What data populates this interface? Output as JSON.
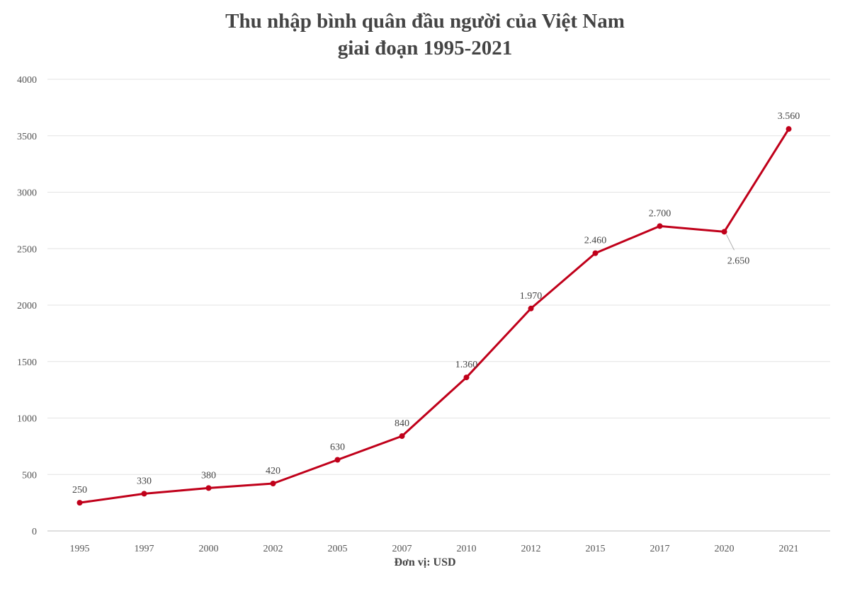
{
  "chart_data": {
    "type": "line",
    "title": "Thu nhập bình quân đầu người của Việt Nam",
    "subtitle": "giai đoạn 1995-2021",
    "xlabel": "Đơn vị: USD",
    "ylabel": "",
    "categories": [
      "1995",
      "1997",
      "2000",
      "2002",
      "2005",
      "2007",
      "2010",
      "2012",
      "2015",
      "2017",
      "2020",
      "2021"
    ],
    "series": [
      {
        "name": "Thu nhập bình quân đầu người",
        "values": [
          250,
          330,
          380,
          420,
          630,
          840,
          1360,
          1970,
          2460,
          2700,
          2650,
          3560
        ],
        "data_labels": [
          "250",
          "330",
          "380",
          "420",
          "630",
          "840",
          "1.360",
          "1.970",
          "2.460",
          "2.700",
          "2.650",
          "3.560"
        ],
        "color": "#c0001a"
      }
    ],
    "ylim": [
      0,
      4000
    ],
    "yticks": [
      0,
      500,
      1000,
      1500,
      2000,
      2500,
      3000,
      3500,
      4000
    ],
    "grid": true,
    "legend": "none"
  }
}
